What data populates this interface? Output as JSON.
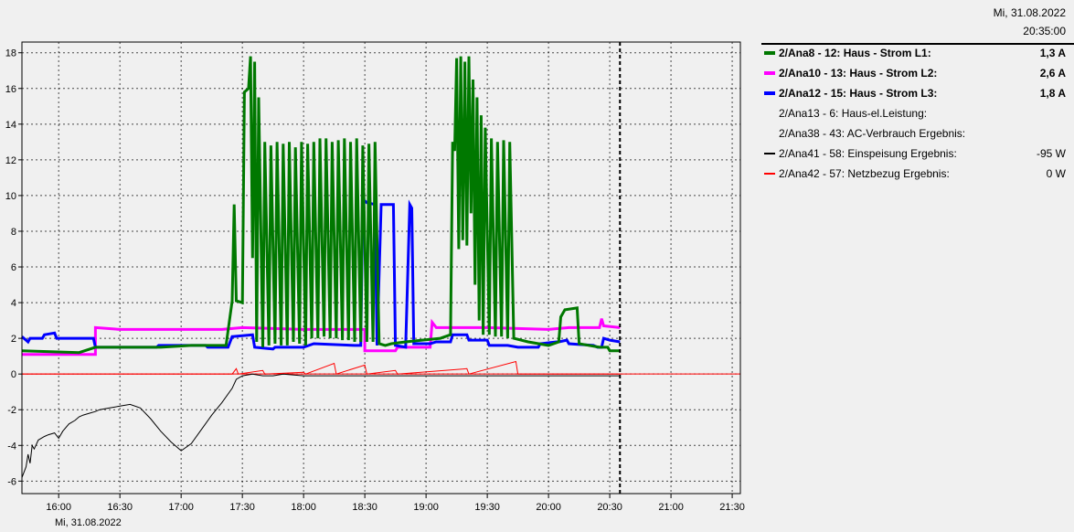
{
  "header": {
    "date": "Mi, 31.08.2022",
    "time": "20:35:00"
  },
  "legend": [
    {
      "label": "2/Ana8 - 12: Haus - Strom L1:",
      "value": "1,3 A",
      "color": "#007800",
      "bold": true
    },
    {
      "label": "2/Ana10 - 13: Haus - Strom L2:",
      "value": "2,6 A",
      "color": "#ff00ff",
      "bold": true
    },
    {
      "label": "2/Ana12 - 15: Haus - Strom L3:",
      "value": "1,8 A",
      "color": "#0000ff",
      "bold": true
    },
    {
      "label": "2/Ana13 - 6: Haus-el.Leistung:",
      "value": "",
      "color": "",
      "bold": false
    },
    {
      "label": "2/Ana38 - 43: AC-Verbrauch Ergebnis:",
      "value": "",
      "color": "",
      "bold": false
    },
    {
      "label": "2/Ana41 - 58: Einspeisung Ergebnis:",
      "value": "-95 W",
      "color": "#000000",
      "bold": false
    },
    {
      "label": "2/Ana42 - 57: Netzbezug Ergebnis:",
      "value": "0 W",
      "color": "#ff0000",
      "bold": false
    }
  ],
  "chart_data": {
    "type": "line",
    "x_date_label": "Mi, 31.08.2022",
    "xlim": [
      "15:42",
      "21:34"
    ],
    "ylim": [
      -6.7,
      18.6
    ],
    "y_ticks": [
      18,
      16,
      14,
      12,
      10,
      8,
      6,
      4,
      2,
      0,
      -2,
      -4,
      -6
    ],
    "x_ticks": [
      "16:00",
      "16:30",
      "17:00",
      "17:30",
      "18:00",
      "18:30",
      "19:00",
      "19:30",
      "20:00",
      "20:30",
      "21:00",
      "21:30"
    ],
    "grid": true,
    "cursor_time": "20:35",
    "series": [
      {
        "name": "2/Ana8 - 12: Haus - Strom L1:",
        "color": "#007800",
        "points": [
          [
            "15:42",
            1.3
          ],
          [
            "16:10",
            1.2
          ],
          [
            "16:18",
            1.5
          ],
          [
            "16:50",
            1.5
          ],
          [
            "17:05",
            1.6
          ],
          [
            "17:22",
            1.6
          ],
          [
            "17:25",
            4.1
          ],
          [
            "17:26",
            9.5
          ],
          [
            "17:27",
            4.1
          ],
          [
            "17:30",
            4.0
          ],
          [
            "17:31",
            15.8
          ],
          [
            "17:33",
            16.0
          ],
          [
            "17:34",
            17.8
          ],
          [
            "17:35",
            6.5
          ],
          [
            "17:36",
            17.5
          ],
          [
            "17:37",
            1.8
          ],
          [
            "17:38",
            15.5
          ],
          [
            "17:40",
            1.5
          ],
          [
            "17:41",
            13.0
          ],
          [
            "17:43",
            1.6
          ],
          [
            "17:44",
            12.8
          ],
          [
            "17:46",
            1.7
          ],
          [
            "17:47",
            13.0
          ],
          [
            "17:49",
            1.6
          ],
          [
            "17:50",
            12.9
          ],
          [
            "17:52",
            1.6
          ],
          [
            "17:53",
            13.0
          ],
          [
            "17:55",
            1.8
          ],
          [
            "17:56",
            12.7
          ],
          [
            "17:58",
            1.7
          ],
          [
            "17:59",
            13.0
          ],
          [
            "18:01",
            1.6
          ],
          [
            "18:02",
            12.9
          ],
          [
            "18:04",
            2.0
          ],
          [
            "18:05",
            13.0
          ],
          [
            "18:07",
            2.0
          ],
          [
            "18:08",
            13.2
          ],
          [
            "18:10",
            2.1
          ],
          [
            "18:11",
            13.2
          ],
          [
            "18:13",
            2.0
          ],
          [
            "18:14",
            13.0
          ],
          [
            "18:16",
            2.0
          ],
          [
            "18:17",
            13.1
          ],
          [
            "18:19",
            1.9
          ],
          [
            "18:20",
            13.2
          ],
          [
            "18:22",
            1.9
          ],
          [
            "18:23",
            13.0
          ],
          [
            "18:25",
            1.8
          ],
          [
            "18:26",
            13.2
          ],
          [
            "18:28",
            1.8
          ],
          [
            "18:29",
            12.8
          ],
          [
            "18:31",
            1.8
          ],
          [
            "18:32",
            12.9
          ],
          [
            "18:34",
            1.8
          ],
          [
            "18:35",
            13.0
          ],
          [
            "18:37",
            1.7
          ],
          [
            "18:40",
            1.6
          ],
          [
            "18:43",
            1.7
          ],
          [
            "18:50",
            1.8
          ],
          [
            "18:58",
            1.9
          ],
          [
            "19:07",
            2.0
          ],
          [
            "19:12",
            2.2
          ],
          [
            "19:13",
            13.0
          ],
          [
            "19:14",
            12.5
          ],
          [
            "19:15",
            17.7
          ],
          [
            "19:16",
            7.0
          ],
          [
            "19:17",
            17.8
          ],
          [
            "19:18",
            7.5
          ],
          [
            "19:19",
            17.5
          ],
          [
            "19:20",
            7.2
          ],
          [
            "19:21",
            17.8
          ],
          [
            "19:22",
            9.0
          ],
          [
            "19:23",
            16.5
          ],
          [
            "19:24",
            5.0
          ],
          [
            "19:25",
            15.5
          ],
          [
            "19:26",
            3.0
          ],
          [
            "19:27",
            14.5
          ],
          [
            "19:28",
            2.2
          ],
          [
            "19:29",
            13.8
          ],
          [
            "19:31",
            2.2
          ],
          [
            "19:32",
            13.2
          ],
          [
            "19:34",
            2.1
          ],
          [
            "19:35",
            13.0
          ],
          [
            "19:37",
            2.1
          ],
          [
            "19:38",
            13.1
          ],
          [
            "19:40",
            2.0
          ],
          [
            "19:41",
            13.0
          ],
          [
            "19:43",
            2.0
          ],
          [
            "19:50",
            1.8
          ],
          [
            "20:00",
            1.6
          ],
          [
            "20:05",
            1.8
          ],
          [
            "20:06",
            3.2
          ],
          [
            "20:08",
            3.6
          ],
          [
            "20:14",
            3.7
          ],
          [
            "20:15",
            1.7
          ],
          [
            "20:25",
            1.5
          ],
          [
            "20:29",
            1.5
          ],
          [
            "20:30",
            1.3
          ],
          [
            "20:35",
            1.3
          ]
        ]
      },
      {
        "name": "2/Ana10 - 13: Haus - Strom L2:",
        "color": "#ff00ff",
        "points": [
          [
            "15:42",
            1.1
          ],
          [
            "16:00",
            1.1
          ],
          [
            "16:10",
            1.1
          ],
          [
            "16:18",
            1.1
          ],
          [
            "16:18",
            2.6
          ],
          [
            "16:30",
            2.5
          ],
          [
            "17:00",
            2.5
          ],
          [
            "17:20",
            2.5
          ],
          [
            "17:30",
            2.6
          ],
          [
            "18:00",
            2.5
          ],
          [
            "18:30",
            2.5
          ],
          [
            "18:30",
            1.3
          ],
          [
            "18:45",
            1.3
          ],
          [
            "18:46",
            1.5
          ],
          [
            "19:02",
            1.5
          ],
          [
            "19:03",
            2.9
          ],
          [
            "19:05",
            2.6
          ],
          [
            "19:30",
            2.6
          ],
          [
            "20:00",
            2.5
          ],
          [
            "20:10",
            2.6
          ],
          [
            "20:25",
            2.6
          ],
          [
            "20:26",
            3.1
          ],
          [
            "20:27",
            2.7
          ],
          [
            "20:35",
            2.6
          ]
        ]
      },
      {
        "name": "2/Ana12 - 15: Haus - Strom L3:",
        "color": "#0000ff",
        "points": [
          [
            "15:42",
            2.1
          ],
          [
            "15:45",
            1.8
          ],
          [
            "15:46",
            2.0
          ],
          [
            "15:52",
            2.0
          ],
          [
            "15:53",
            2.2
          ],
          [
            "15:58",
            2.3
          ],
          [
            "15:59",
            2.0
          ],
          [
            "16:17",
            2.0
          ],
          [
            "16:18",
            1.5
          ],
          [
            "16:30",
            1.5
          ],
          [
            "16:48",
            1.5
          ],
          [
            "16:49",
            1.6
          ],
          [
            "17:12",
            1.6
          ],
          [
            "17:13",
            1.5
          ],
          [
            "17:23",
            1.5
          ],
          [
            "17:25",
            2.1
          ],
          [
            "17:35",
            2.2
          ],
          [
            "17:36",
            1.5
          ],
          [
            "17:45",
            1.4
          ],
          [
            "17:46",
            1.5
          ],
          [
            "18:00",
            1.5
          ],
          [
            "18:05",
            1.7
          ],
          [
            "18:25",
            1.6
          ],
          [
            "18:28",
            1.6
          ],
          [
            "18:29",
            9.8
          ],
          [
            "18:31",
            9.6
          ],
          [
            "18:35",
            9.5
          ],
          [
            "18:36",
            1.6
          ],
          [
            "18:38",
            9.5
          ],
          [
            "18:44",
            9.5
          ],
          [
            "18:45",
            1.6
          ],
          [
            "18:50",
            1.5
          ],
          [
            "18:52",
            9.5
          ],
          [
            "18:53",
            9.3
          ],
          [
            "18:54",
            1.7
          ],
          [
            "19:02",
            1.7
          ],
          [
            "19:05",
            1.8
          ],
          [
            "19:12",
            1.8
          ],
          [
            "19:13",
            2.2
          ],
          [
            "19:20",
            2.2
          ],
          [
            "19:21",
            1.9
          ],
          [
            "19:30",
            1.9
          ],
          [
            "19:31",
            1.6
          ],
          [
            "19:40",
            1.6
          ],
          [
            "19:45",
            1.5
          ],
          [
            "19:55",
            1.5
          ],
          [
            "19:56",
            1.7
          ],
          [
            "20:04",
            1.8
          ],
          [
            "20:05",
            1.8
          ],
          [
            "20:09",
            1.9
          ],
          [
            "20:10",
            1.7
          ],
          [
            "20:22",
            1.6
          ],
          [
            "20:24",
            1.5
          ],
          [
            "20:26",
            1.5
          ],
          [
            "20:27",
            2.0
          ],
          [
            "20:30",
            1.9
          ],
          [
            "20:35",
            1.8
          ]
        ]
      },
      {
        "name": "2/Ana41 - 58: Einspeisung Ergebnis:",
        "color": "#000000",
        "points": [
          [
            "15:42",
            -5.8
          ],
          [
            "15:44",
            -5.2
          ],
          [
            "15:45",
            -4.5
          ],
          [
            "15:46",
            -5.0
          ],
          [
            "15:47",
            -4.0
          ],
          [
            "15:48",
            -4.2
          ],
          [
            "15:50",
            -3.7
          ],
          [
            "15:53",
            -3.5
          ],
          [
            "15:55",
            -3.4
          ],
          [
            "15:58",
            -3.3
          ],
          [
            "16:00",
            -3.6
          ],
          [
            "16:02",
            -3.2
          ],
          [
            "16:05",
            -2.8
          ],
          [
            "16:08",
            -2.6
          ],
          [
            "16:10",
            -2.4
          ],
          [
            "16:12",
            -2.3
          ],
          [
            "16:15",
            -2.2
          ],
          [
            "16:18",
            -2.1
          ],
          [
            "16:20",
            -2.0
          ],
          [
            "16:25",
            -1.9
          ],
          [
            "16:30",
            -1.8
          ],
          [
            "16:35",
            -1.7
          ],
          [
            "16:40",
            -1.9
          ],
          [
            "16:45",
            -2.5
          ],
          [
            "16:50",
            -3.2
          ],
          [
            "16:55",
            -3.8
          ],
          [
            "17:00",
            -4.3
          ],
          [
            "17:05",
            -3.9
          ],
          [
            "17:10",
            -3.1
          ],
          [
            "17:15",
            -2.3
          ],
          [
            "17:20",
            -1.6
          ],
          [
            "17:25",
            -0.8
          ],
          [
            "17:27",
            -0.3
          ],
          [
            "17:30",
            -0.1
          ],
          [
            "17:35",
            0.0
          ],
          [
            "17:40",
            -0.1
          ],
          [
            "17:45",
            -0.1
          ],
          [
            "17:50",
            0.0
          ],
          [
            "18:00",
            -0.1
          ],
          [
            "18:10",
            -0.1
          ],
          [
            "18:20",
            -0.1
          ],
          [
            "18:30",
            -0.1
          ],
          [
            "18:40",
            -0.1
          ],
          [
            "18:50",
            -0.1
          ],
          [
            "19:00",
            -0.1
          ],
          [
            "19:10",
            -0.1
          ],
          [
            "19:20",
            -0.1
          ],
          [
            "19:30",
            -0.1
          ],
          [
            "19:40",
            -0.1
          ],
          [
            "19:50",
            -0.1
          ],
          [
            "20:00",
            -0.1
          ],
          [
            "20:10",
            -0.1
          ],
          [
            "20:20",
            -0.1
          ],
          [
            "20:30",
            -0.1
          ],
          [
            "20:35",
            -0.1
          ]
        ]
      },
      {
        "name": "2/Ana42 - 57: Netzbezug Ergebnis:",
        "color": "#ff0000",
        "points": [
          [
            "15:42",
            0.0
          ],
          [
            "17:25",
            0.0
          ],
          [
            "17:27",
            0.3
          ],
          [
            "17:28",
            0.0
          ],
          [
            "17:40",
            0.2
          ],
          [
            "17:41",
            0.0
          ],
          [
            "18:00",
            0.1
          ],
          [
            "18:01",
            0.0
          ],
          [
            "18:15",
            0.6
          ],
          [
            "18:16",
            0.0
          ],
          [
            "18:30",
            0.5
          ],
          [
            "18:31",
            0.0
          ],
          [
            "18:45",
            0.2
          ],
          [
            "18:46",
            0.0
          ],
          [
            "19:20",
            0.3
          ],
          [
            "19:21",
            0.0
          ],
          [
            "19:44",
            0.7
          ],
          [
            "19:45",
            0.0
          ],
          [
            "20:35",
            0.0
          ]
        ]
      }
    ]
  }
}
